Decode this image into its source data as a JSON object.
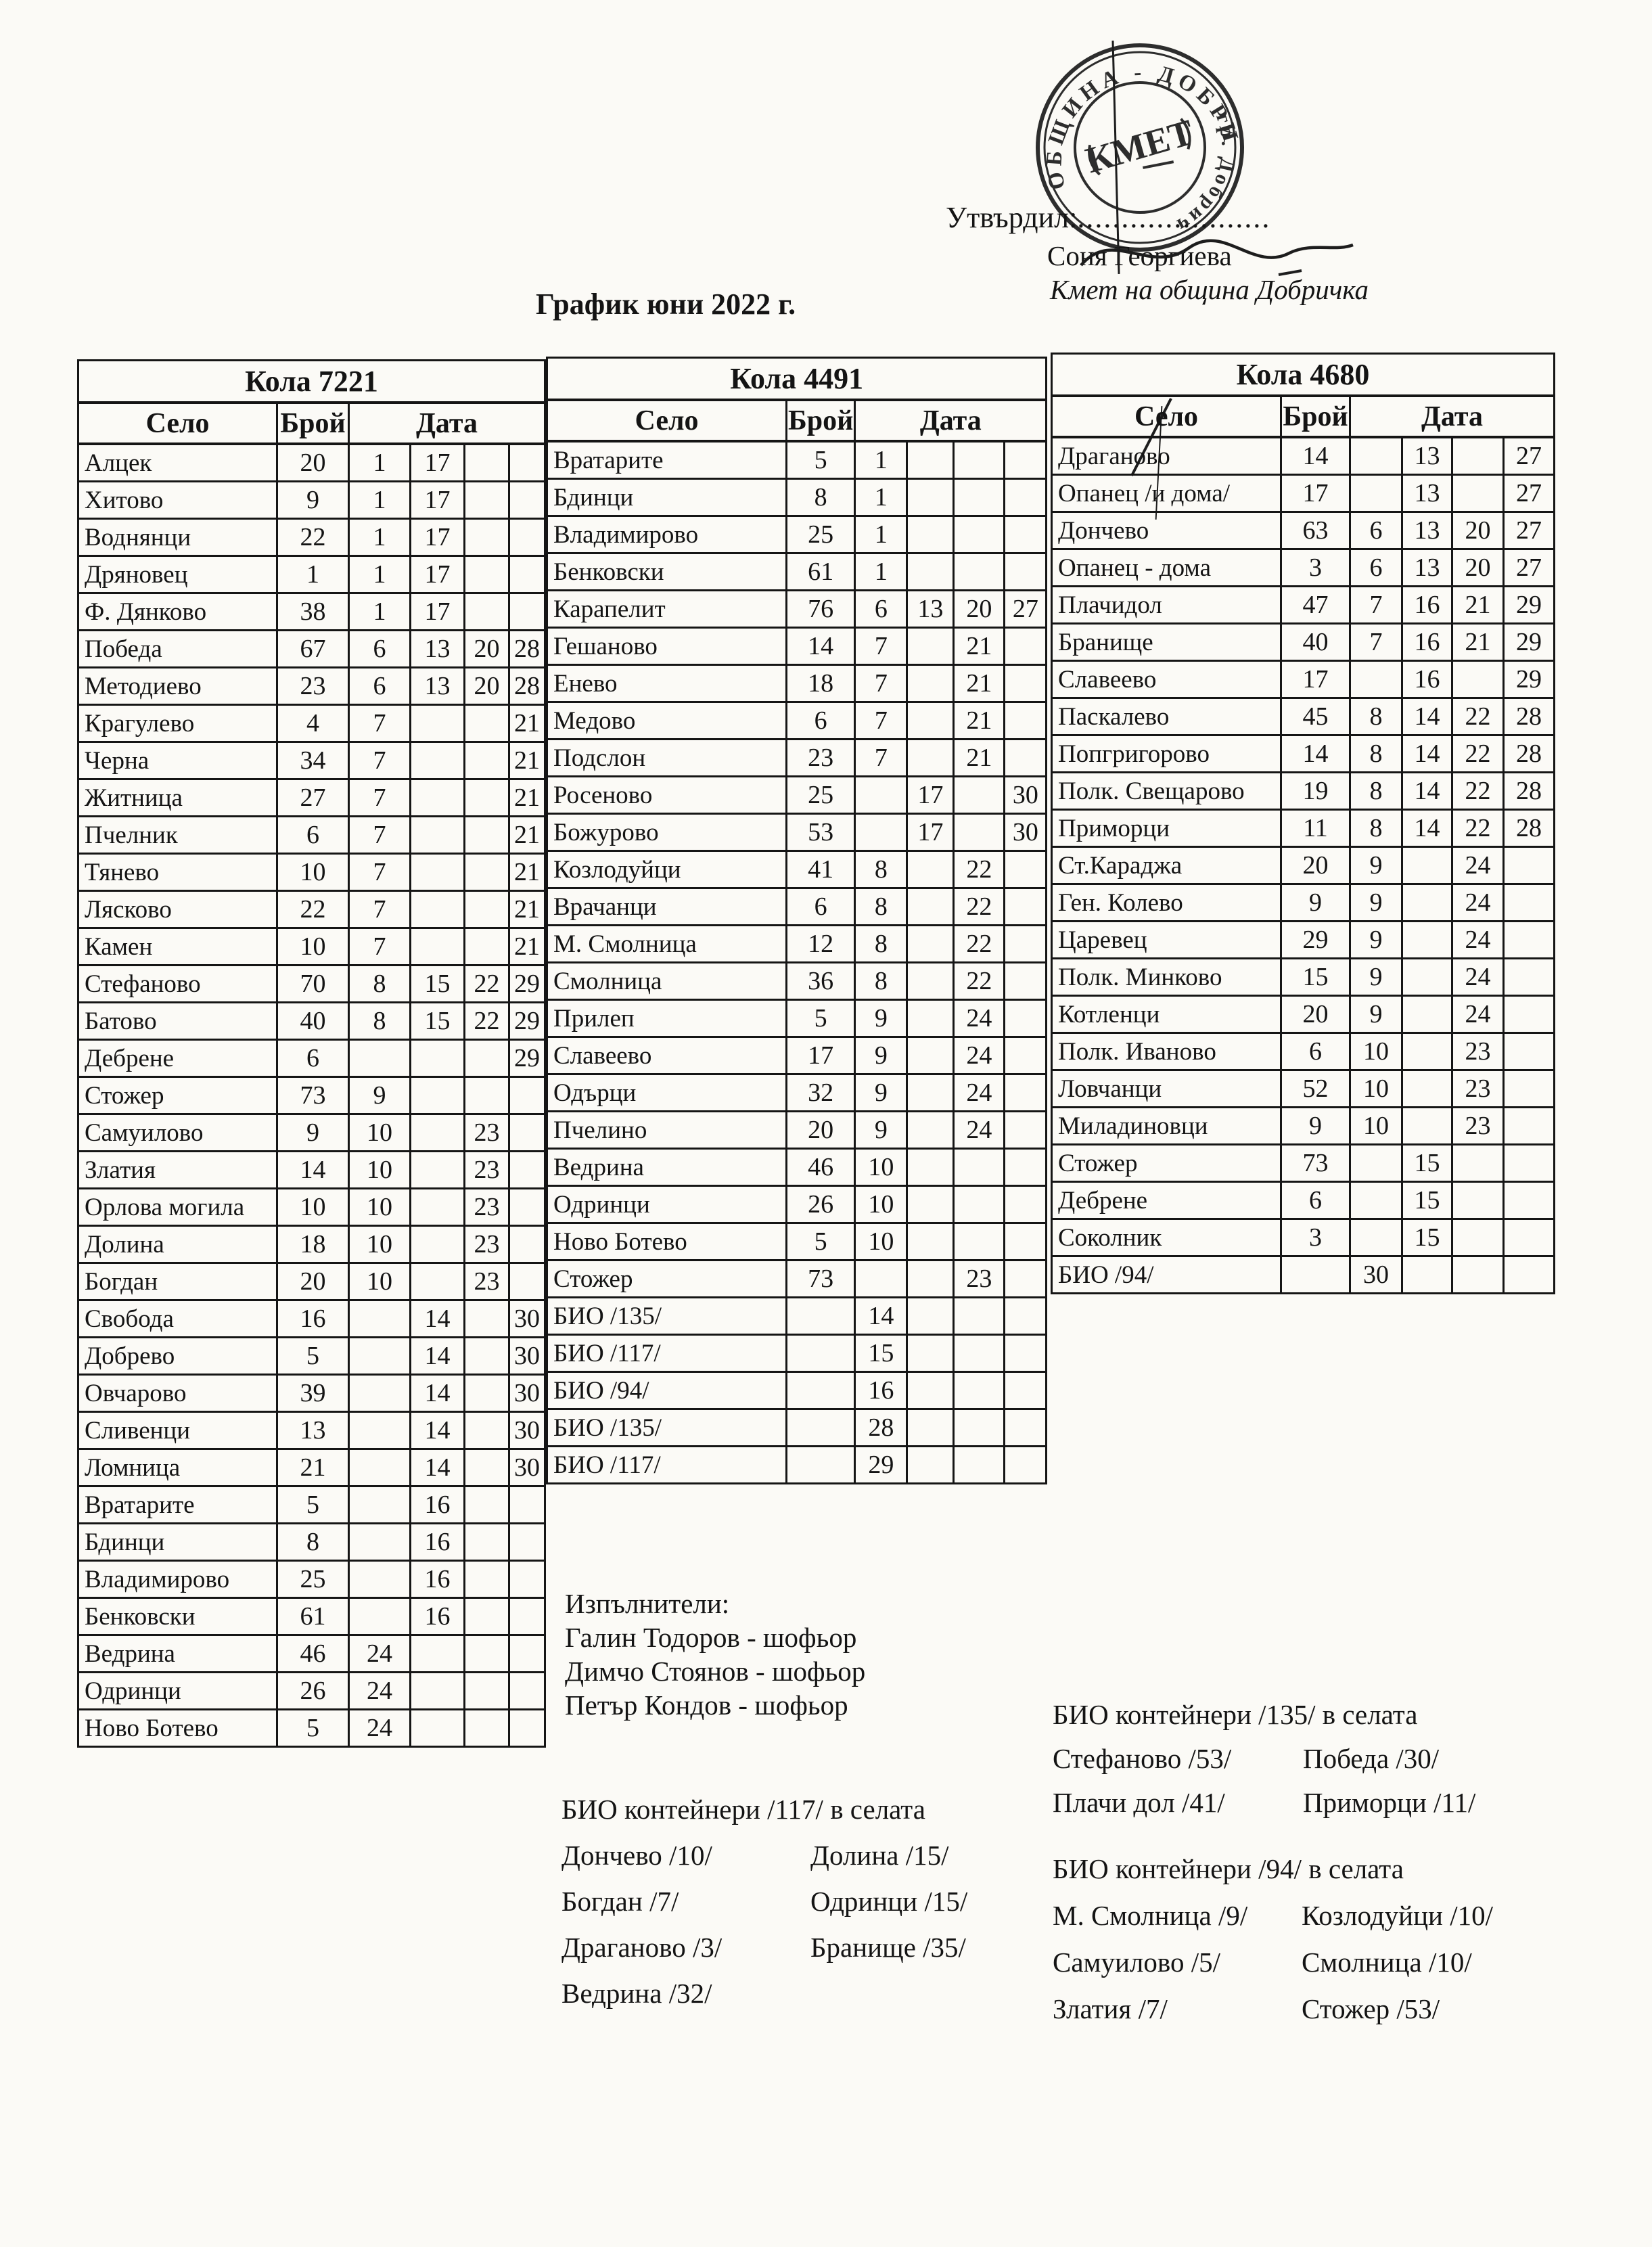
{
  "header": {
    "approved_label": "Утвърдил:",
    "dots": "......................",
    "approver_name": "Соня Георгиева",
    "approver_title": "Кмет  на община Добричка",
    "stamp": {
      "arc_top": "ОБЩИНА - ДОБРИЧ",
      "arc_side": "гр. Добрич",
      "center": "КМЕТ"
    }
  },
  "title": "График юни 2022 г.",
  "columns": {
    "village": "Село",
    "count": "Брой",
    "date": "Дата"
  },
  "tables": [
    {
      "car": "Кола 7221",
      "rows": [
        [
          "Алцек",
          "20",
          "1",
          "17",
          "",
          ""
        ],
        [
          "Хитово",
          "9",
          "1",
          "17",
          "",
          ""
        ],
        [
          "Воднянци",
          "22",
          "1",
          "17",
          "",
          ""
        ],
        [
          "Дряновец",
          "1",
          "1",
          "17",
          "",
          ""
        ],
        [
          "Ф. Дянково",
          "38",
          "1",
          "17",
          "",
          ""
        ],
        [
          "Победа",
          "67",
          "6",
          "13",
          "20",
          "28"
        ],
        [
          "Методиево",
          "23",
          "6",
          "13",
          "20",
          "28"
        ],
        [
          "Крагулево",
          "4",
          "7",
          "",
          "",
          "21"
        ],
        [
          "Черна",
          "34",
          "7",
          "",
          "",
          "21"
        ],
        [
          "Житница",
          "27",
          "7",
          "",
          "",
          "21"
        ],
        [
          "Пчелник",
          "6",
          "7",
          "",
          "",
          "21"
        ],
        [
          "Тянево",
          "10",
          "7",
          "",
          "",
          "21"
        ],
        [
          "Лясково",
          "22",
          "7",
          "",
          "",
          "21"
        ],
        [
          "Камен",
          "10",
          "7",
          "",
          "",
          "21"
        ],
        [
          "Стефаново",
          "70",
          "8",
          "15",
          "22",
          "29"
        ],
        [
          "Батово",
          "40",
          "8",
          "15",
          "22",
          "29"
        ],
        [
          "Дебрене",
          "6",
          "",
          "",
          "",
          "29"
        ],
        [
          "Стожер",
          "73",
          "9",
          "",
          "",
          ""
        ],
        [
          "Самуилово",
          "9",
          "10",
          "",
          "23",
          ""
        ],
        [
          "Златия",
          "14",
          "10",
          "",
          "23",
          ""
        ],
        [
          "Орлова могила",
          "10",
          "10",
          "",
          "23",
          ""
        ],
        [
          "Долина",
          "18",
          "10",
          "",
          "23",
          ""
        ],
        [
          "Богдан",
          "20",
          "10",
          "",
          "23",
          ""
        ],
        [
          "Свобода",
          "16",
          "",
          "14",
          "",
          "30"
        ],
        [
          "Добрево",
          "5",
          "",
          "14",
          "",
          "30"
        ],
        [
          "Овчарово",
          "39",
          "",
          "14",
          "",
          "30"
        ],
        [
          "Сливенци",
          "13",
          "",
          "14",
          "",
          "30"
        ],
        [
          "Ломница",
          "21",
          "",
          "14",
          "",
          "30"
        ],
        [
          "Вратарите",
          "5",
          "",
          "16",
          "",
          ""
        ],
        [
          "Бдинци",
          "8",
          "",
          "16",
          "",
          ""
        ],
        [
          "Владимирово",
          "25",
          "",
          "16",
          "",
          ""
        ],
        [
          "Бенковски",
          "61",
          "",
          "16",
          "",
          ""
        ],
        [
          "Ведрина",
          "46",
          "24",
          "",
          "",
          ""
        ],
        [
          "Одринци",
          "26",
          "24",
          "",
          "",
          ""
        ],
        [
          "Ново Ботево",
          "5",
          "24",
          "",
          "",
          ""
        ]
      ]
    },
    {
      "car": "Кола 4491",
      "rows": [
        [
          "Вратарите",
          "5",
          "1",
          "",
          "",
          ""
        ],
        [
          "Бдинци",
          "8",
          "1",
          "",
          "",
          ""
        ],
        [
          "Владимирово",
          "25",
          "1",
          "",
          "",
          ""
        ],
        [
          "Бенковски",
          "61",
          "1",
          "",
          "",
          ""
        ],
        [
          "Карапелит",
          "76",
          "6",
          "13",
          "20",
          "27"
        ],
        [
          "Гешаново",
          "14",
          "7",
          "",
          "21",
          ""
        ],
        [
          "Енево",
          "18",
          "7",
          "",
          "21",
          ""
        ],
        [
          "Медово",
          "6",
          "7",
          "",
          "21",
          ""
        ],
        [
          "Подслон",
          "23",
          "7",
          "",
          "21",
          ""
        ],
        [
          "Росеново",
          "25",
          "",
          "17",
          "",
          "30"
        ],
        [
          "Божурово",
          "53",
          "",
          "17",
          "",
          "30"
        ],
        [
          "Козлодуйци",
          "41",
          "8",
          "",
          "22",
          ""
        ],
        [
          "Врачанци",
          "6",
          "8",
          "",
          "22",
          ""
        ],
        [
          "М. Смолница",
          "12",
          "8",
          "",
          "22",
          ""
        ],
        [
          "Смолница",
          "36",
          "8",
          "",
          "22",
          ""
        ],
        [
          "Прилеп",
          "5",
          "9",
          "",
          "24",
          ""
        ],
        [
          "Славеево",
          "17",
          "9",
          "",
          "24",
          ""
        ],
        [
          "Одърци",
          "32",
          "9",
          "",
          "24",
          ""
        ],
        [
          "Пчелино",
          "20",
          "9",
          "",
          "24",
          ""
        ],
        [
          "Ведрина",
          "46",
          "10",
          "",
          "",
          ""
        ],
        [
          "Одринци",
          "26",
          "10",
          "",
          "",
          ""
        ],
        [
          "Ново Ботево",
          "5",
          "10",
          "",
          "",
          ""
        ],
        [
          "Стожер",
          "73",
          "",
          "",
          "23",
          ""
        ],
        [
          "БИО /135/",
          "",
          "14",
          "",
          "",
          ""
        ],
        [
          "БИО /117/",
          "",
          "15",
          "",
          "",
          ""
        ],
        [
          "БИО /94/",
          "",
          "16",
          "",
          "",
          ""
        ],
        [
          "БИО /135/",
          "",
          "28",
          "",
          "",
          ""
        ],
        [
          "БИО /117/",
          "",
          "29",
          "",
          "",
          ""
        ]
      ]
    },
    {
      "car": "Кола 4680",
      "rows": [
        [
          "Драганово",
          "14",
          "",
          "13",
          "",
          "27"
        ],
        [
          "Опанец /и дома/",
          "17",
          "",
          "13",
          "",
          "27"
        ],
        [
          "Дончево",
          "63",
          "6",
          "13",
          "20",
          "27"
        ],
        [
          "Опанец - дома",
          "3",
          "6",
          "13",
          "20",
          "27"
        ],
        [
          "Плачидол",
          "47",
          "7",
          "16",
          "21",
          "29"
        ],
        [
          "Бранище",
          "40",
          "7",
          "16",
          "21",
          "29"
        ],
        [
          "Славеево",
          "17",
          "",
          "16",
          "",
          "29"
        ],
        [
          "Паскалево",
          "45",
          "8",
          "14",
          "22",
          "28"
        ],
        [
          "Попгригорово",
          "14",
          "8",
          "14",
          "22",
          "28"
        ],
        [
          "Полк. Свещарово",
          "19",
          "8",
          "14",
          "22",
          "28"
        ],
        [
          "Приморци",
          "11",
          "8",
          "14",
          "22",
          "28"
        ],
        [
          "Ст.Караджа",
          "20",
          "9",
          "",
          "24",
          ""
        ],
        [
          "Ген. Колево",
          "9",
          "9",
          "",
          "24",
          ""
        ],
        [
          "Царевец",
          "29",
          "9",
          "",
          "24",
          ""
        ],
        [
          "Полк. Минково",
          "15",
          "9",
          "",
          "24",
          ""
        ],
        [
          "Котленци",
          "20",
          "9",
          "",
          "24",
          ""
        ],
        [
          "Полк. Иваново",
          "6",
          "10",
          "",
          "23",
          ""
        ],
        [
          "Ловчанци",
          "52",
          "10",
          "",
          "23",
          ""
        ],
        [
          "Миладиновци",
          "9",
          "10",
          "",
          "23",
          ""
        ],
        [
          "Стожер",
          "73",
          "",
          "15",
          "",
          ""
        ],
        [
          "Дебрене",
          "6",
          "",
          "15",
          "",
          ""
        ],
        [
          "Соколник",
          "3",
          "",
          "15",
          "",
          ""
        ],
        [
          "БИО /94/",
          "",
          "30",
          "",
          "",
          ""
        ]
      ]
    }
  ],
  "executors": {
    "title": "Изпълнители:",
    "lines": [
      "Галин Тодоров - шофьор",
      "Димчо Стоянов - шофьор",
      "Петър Кондов - шофьор"
    ]
  },
  "bio_sections": [
    {
      "title": "БИО контейнери /135/ в селата",
      "rows": [
        [
          "Стефаново /53/",
          "Победа /30/"
        ],
        [
          "Плачи дол /41/",
          "Приморци /11/"
        ]
      ]
    },
    {
      "title": "БИО контейнери /117/ в селата",
      "rows": [
        [
          "Дончево /10/",
          "Долина /15/"
        ],
        [
          "Богдан /7/",
          "Одринци /15/"
        ],
        [
          "Драганово /3/",
          "Бранище /35/"
        ],
        [
          "Ведрина /32/",
          ""
        ]
      ]
    },
    {
      "title": "БИО контейнери /94/ в селата",
      "rows": [
        [
          "М. Смолница /9/",
          "Козлодуйци /10/"
        ],
        [
          "Самуилово /5/",
          "Смолница /10/"
        ],
        [
          "Златия /7/",
          "Стожер /53/"
        ]
      ]
    }
  ]
}
